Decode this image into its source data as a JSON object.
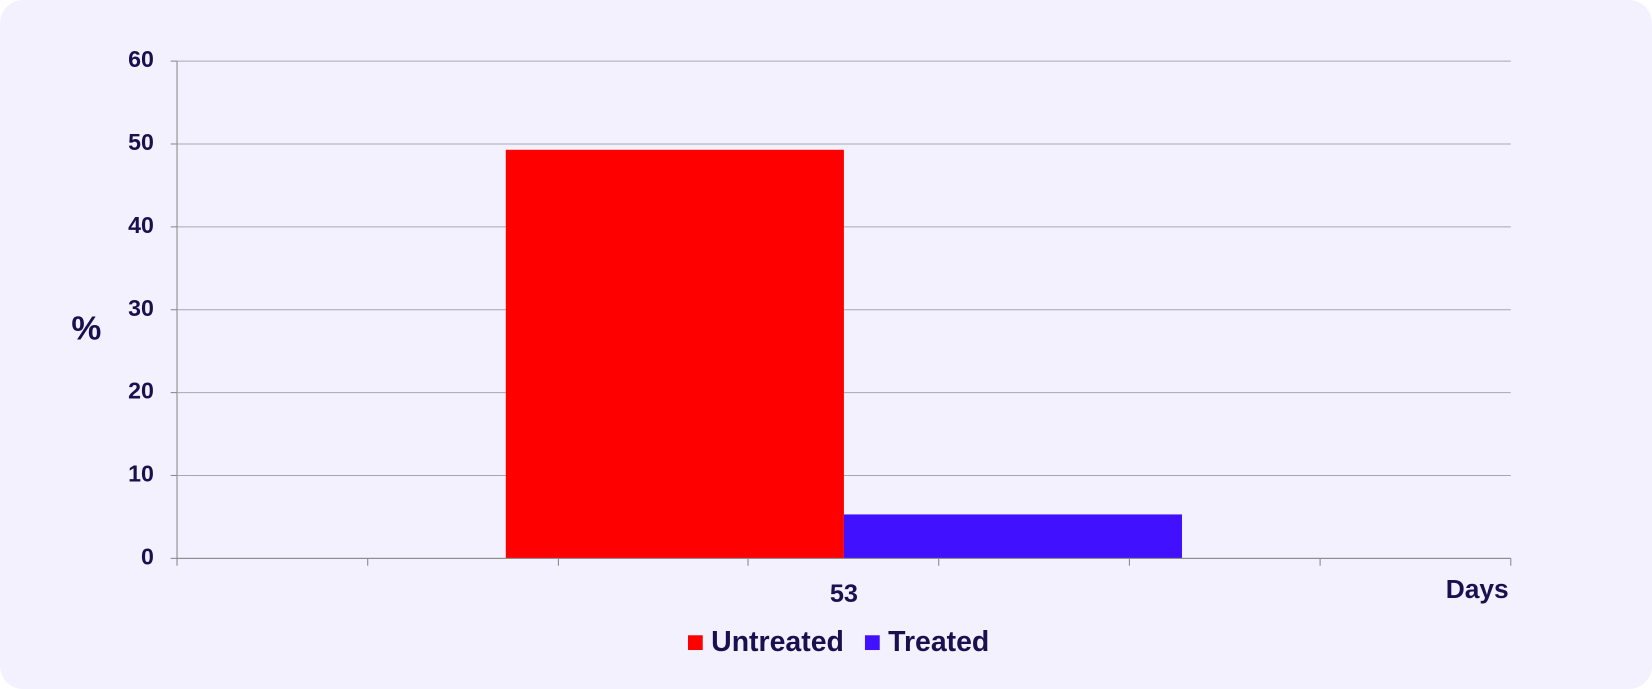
{
  "chart_data": {
    "type": "bar",
    "y_label": "%",
    "x_label": "Days",
    "categories": [
      "53"
    ],
    "series": [
      {
        "name": "Untreated",
        "color": "#ff0000",
        "values": [
          49.3
        ]
      },
      {
        "name": "Treated",
        "color": "#4010ff",
        "values": [
          5.3
        ]
      }
    ],
    "ylim": [
      0,
      60
    ],
    "yticks": [
      0,
      10,
      20,
      30,
      40,
      50,
      60
    ],
    "grid": true
  }
}
